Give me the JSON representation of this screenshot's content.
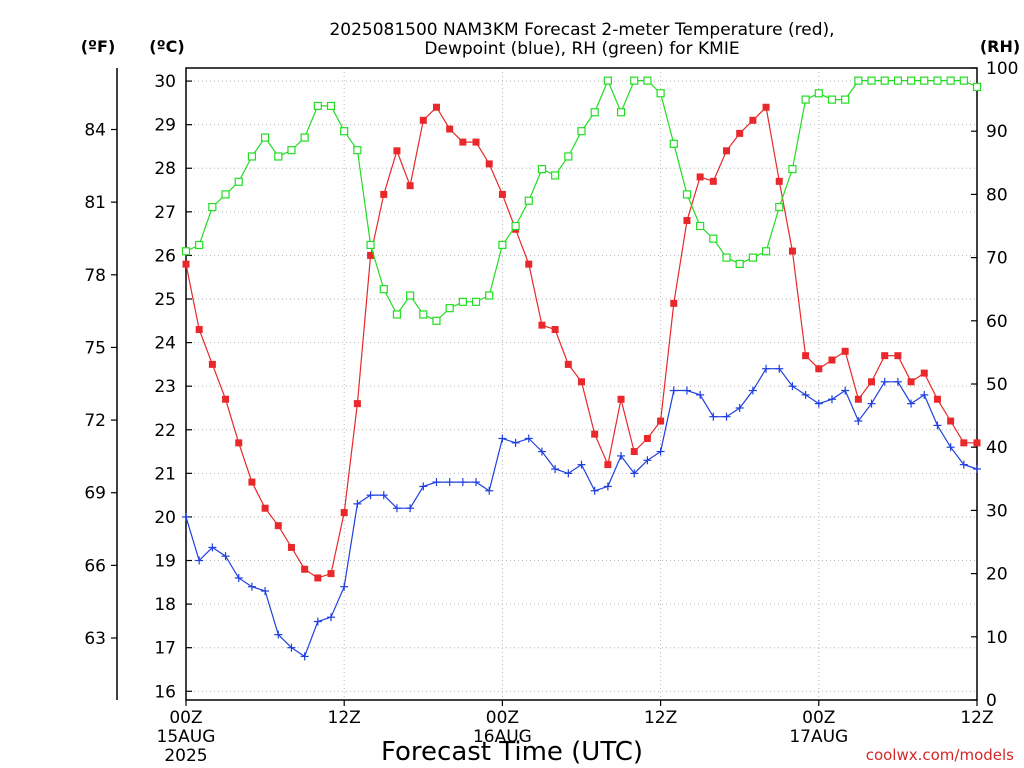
{
  "chart_data": {
    "type": "line",
    "title": "2025081500 NAM3KM Forecast 2-meter Temperature (red),",
    "subtitle": "Dewpoint (blue), RH (green) for KMIE",
    "xlabel": "Forecast Time (UTC)",
    "credit": "coolwx.com/models",
    "units": {
      "fahrenheit": "(ºF)",
      "celsius": "(ºC)",
      "rh": "(RH)"
    },
    "x_range_hours": [
      0,
      60
    ],
    "x_ticks": [
      {
        "hour": 0,
        "label": "00Z",
        "date": "15AUG",
        "year": "2025"
      },
      {
        "hour": 12,
        "label": "12Z",
        "date": "",
        "year": ""
      },
      {
        "hour": 24,
        "label": "00Z",
        "date": "16AUG",
        "year": ""
      },
      {
        "hour": 36,
        "label": "12Z",
        "date": "",
        "year": ""
      },
      {
        "hour": 48,
        "label": "00Z",
        "date": "17AUG",
        "year": ""
      },
      {
        "hour": 60,
        "label": "12Z",
        "date": "",
        "year": ""
      }
    ],
    "y_left_celsius": {
      "min": 15.8,
      "max": 30.3,
      "ticks": [
        16,
        17,
        18,
        19,
        20,
        21,
        22,
        23,
        24,
        25,
        26,
        27,
        28,
        29,
        30
      ]
    },
    "y_left_fahrenheit": {
      "ticks": [
        "63",
        "66",
        "69",
        "72",
        "75",
        "78",
        "81",
        "84"
      ]
    },
    "y_right_rh": {
      "min": 0,
      "max": 100,
      "ticks": [
        "0",
        "10",
        "20",
        "30",
        "40",
        "50",
        "60",
        "70",
        "80",
        "90",
        "100"
      ]
    },
    "series": [
      {
        "name": "Temperature",
        "axis": "celsius",
        "color": "#e8282b",
        "marker": "filled-square",
        "values": [
          25.8,
          24.3,
          23.5,
          22.7,
          21.7,
          20.8,
          20.2,
          19.8,
          19.3,
          18.8,
          18.6,
          18.7,
          20.1,
          22.6,
          26.0,
          27.4,
          28.4,
          27.6,
          29.1,
          29.4,
          28.9,
          28.6,
          28.6,
          28.1,
          27.4,
          26.6,
          25.8,
          24.4,
          24.3,
          23.5,
          23.1,
          21.9,
          21.2,
          22.7,
          21.5,
          21.8,
          22.2,
          24.9,
          26.8,
          27.8,
          27.7,
          28.4,
          28.8,
          29.1,
          29.4,
          27.7,
          26.1,
          23.7,
          23.4,
          23.6,
          23.8,
          22.7,
          23.1,
          23.7,
          23.7,
          23.1,
          23.3,
          22.7,
          22.2,
          21.7,
          21.7
        ]
      },
      {
        "name": "Dewpoint",
        "axis": "celsius",
        "color": "#1f3fe0",
        "marker": "plus",
        "values": [
          20.0,
          19.0,
          19.3,
          19.1,
          18.6,
          18.4,
          18.3,
          17.3,
          17.0,
          16.8,
          17.6,
          17.7,
          18.4,
          20.3,
          20.5,
          20.5,
          20.2,
          20.2,
          20.7,
          20.8,
          20.8,
          20.8,
          20.8,
          20.6,
          21.8,
          21.7,
          21.8,
          21.5,
          21.1,
          21.0,
          21.2,
          20.6,
          20.7,
          21.4,
          21.0,
          21.3,
          21.5,
          22.9,
          22.9,
          22.8,
          22.3,
          22.3,
          22.5,
          22.9,
          23.4,
          23.4,
          23.0,
          22.8,
          22.6,
          22.7,
          22.9,
          22.2,
          22.6,
          23.1,
          23.1,
          22.6,
          22.8,
          22.1,
          21.6,
          21.2,
          21.1
        ]
      },
      {
        "name": "RH",
        "axis": "rh",
        "color": "#22dd22",
        "marker": "open-square",
        "values": [
          71,
          72,
          78,
          80,
          82,
          86,
          89,
          86,
          87,
          89,
          94,
          94,
          90,
          87,
          72,
          65,
          61,
          64,
          61,
          60,
          62,
          63,
          63,
          64,
          72,
          75,
          79,
          84,
          83,
          86,
          90,
          93,
          98,
          93,
          98,
          98,
          96,
          88,
          80,
          75,
          73,
          70,
          69,
          70,
          71,
          78,
          84,
          95,
          96,
          95,
          95,
          98,
          98,
          98,
          98,
          98,
          98,
          98,
          98,
          98,
          97
        ]
      }
    ]
  }
}
